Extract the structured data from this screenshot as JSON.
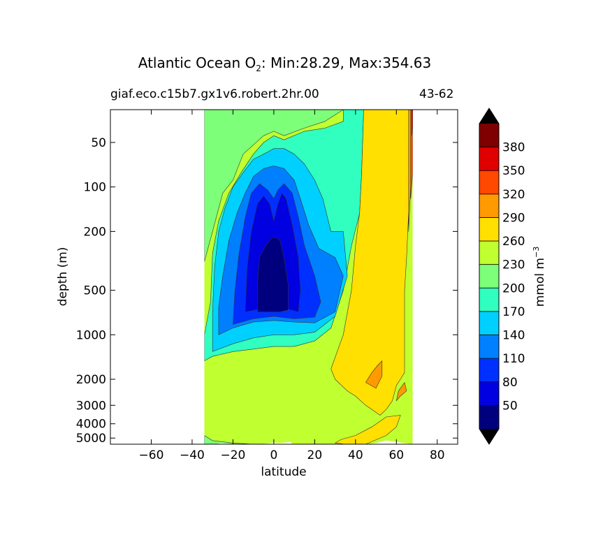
{
  "chart_data": {
    "type": "contourf",
    "title_prefix": "Atlantic Ocean O",
    "title_subscript": "2",
    "title_suffix": ": Min:28.29, Max:354.63",
    "subtitle_left": "giaf.eco.c15b7.gx1v6.robert.2hr.00",
    "subtitle_right": "43-62",
    "xlabel": "latitude",
    "ylabel": "depth (m)",
    "xlim": [
      -80,
      90
    ],
    "x_ticks": [
      -60,
      -40,
      -20,
      0,
      20,
      40,
      60,
      80
    ],
    "x_tick_labels": [
      "−60",
      "−40",
      "−20",
      "0",
      "20",
      "40",
      "60",
      "80"
    ],
    "y_scale": "log (inverted)",
    "ylim": [
      5500,
      30
    ],
    "y_ticks": [
      50,
      100,
      200,
      500,
      1000,
      2000,
      3000,
      4000,
      5000
    ],
    "y_tick_labels": [
      "50",
      "100",
      "200",
      "500",
      "1000",
      "2000",
      "3000",
      "4000",
      "5000"
    ],
    "data_lat_range": [
      -34,
      68
    ],
    "colorbar": {
      "label": "mmol m",
      "label_superscript": "−3",
      "levels": [
        20,
        50,
        80,
        110,
        140,
        170,
        200,
        230,
        260,
        290,
        320,
        350,
        380,
        410
      ],
      "tick_values": [
        50,
        80,
        110,
        140,
        170,
        200,
        230,
        260,
        290,
        320,
        350,
        380
      ],
      "tick_labels": [
        "50",
        "80",
        "110",
        "140",
        "170",
        "200",
        "230",
        "260",
        "290",
        "320",
        "350",
        "380"
      ],
      "colors": [
        "#00007f",
        "#0000e0",
        "#0030ff",
        "#0080ff",
        "#00d0ff",
        "#30ffc0",
        "#7dff7a",
        "#c0ff30",
        "#ffe000",
        "#ff9a00",
        "#ff4800",
        "#e00000",
        "#7f0000"
      ],
      "extend": "both",
      "under_color": "#000000",
      "over_color": "#000000"
    },
    "contours": [
      {
        "level": 230,
        "color": "#7dff7a",
        "points": [
          [
            -34,
            30
          ],
          [
            -34,
            320
          ],
          [
            -30,
            200
          ],
          [
            -25,
            110
          ],
          [
            -20,
            90
          ],
          [
            -15,
            60
          ],
          [
            -5,
            45
          ],
          [
            0,
            42
          ],
          [
            5,
            45
          ],
          [
            15,
            40
          ],
          [
            25,
            36
          ],
          [
            34,
            30
          ],
          [
            34,
            30
          ]
        ]
      },
      {
        "level": 200,
        "color": "#30ffc0",
        "points": [
          [
            -34,
            1500
          ],
          [
            -30,
            1400
          ],
          [
            -20,
            1300
          ],
          [
            -10,
            1250
          ],
          [
            0,
            1200
          ],
          [
            10,
            1200
          ],
          [
            20,
            1100
          ],
          [
            28,
            900
          ],
          [
            34,
            500
          ],
          [
            38,
            250
          ],
          [
            42,
            150
          ],
          [
            43,
            80
          ],
          [
            44,
            30
          ],
          [
            34,
            30
          ],
          [
            34,
            36
          ],
          [
            25,
            40
          ],
          [
            15,
            42
          ],
          [
            5,
            48
          ],
          [
            0,
            45
          ],
          [
            -5,
            50
          ],
          [
            -10,
            60
          ],
          [
            -16,
            80
          ],
          [
            -22,
            110
          ],
          [
            -27,
            170
          ],
          [
            -30,
            280
          ],
          [
            -31,
            600
          ],
          [
            -34,
            1000
          ]
        ]
      },
      {
        "level": 170,
        "color": "#00d0ff",
        "points": [
          [
            -30,
            1300
          ],
          [
            -20,
            1150
          ],
          [
            -10,
            1050
          ],
          [
            0,
            1000
          ],
          [
            10,
            1000
          ],
          [
            20,
            960
          ],
          [
            30,
            750
          ],
          [
            36,
            400
          ],
          [
            34,
            200
          ],
          [
            28,
            200
          ],
          [
            24,
            120
          ],
          [
            20,
            90
          ],
          [
            15,
            70
          ],
          [
            10,
            60
          ],
          [
            5,
            55
          ],
          [
            0,
            55
          ],
          [
            -5,
            60
          ],
          [
            -10,
            65
          ],
          [
            -15,
            80
          ],
          [
            -20,
            100
          ],
          [
            -24,
            140
          ],
          [
            -27,
            200
          ],
          [
            -29,
            350
          ],
          [
            -30,
            700
          ]
        ]
      },
      {
        "level": 140,
        "color": "#0080ff",
        "points": [
          [
            -27,
            1000
          ],
          [
            -20,
            900
          ],
          [
            -10,
            820
          ],
          [
            0,
            800
          ],
          [
            10,
            820
          ],
          [
            20,
            830
          ],
          [
            30,
            700
          ],
          [
            34,
            400
          ],
          [
            30,
            300
          ],
          [
            22,
            260
          ],
          [
            17,
            180
          ],
          [
            13,
            120
          ],
          [
            10,
            90
          ],
          [
            5,
            75
          ],
          [
            0,
            72
          ],
          [
            -5,
            75
          ],
          [
            -10,
            85
          ],
          [
            -14,
            110
          ],
          [
            -18,
            150
          ],
          [
            -22,
            230
          ],
          [
            -25,
            400
          ],
          [
            -27,
            650
          ]
        ]
      },
      {
        "level": 110,
        "color": "#0030ff",
        "points": [
          [
            -20,
            850
          ],
          [
            -10,
            780
          ],
          [
            0,
            750
          ],
          [
            10,
            780
          ],
          [
            20,
            760
          ],
          [
            23,
            600
          ],
          [
            20,
            400
          ],
          [
            15,
            250
          ],
          [
            12,
            160
          ],
          [
            9,
            110
          ],
          [
            5,
            95
          ],
          [
            2,
            105
          ],
          [
            0,
            120
          ],
          [
            -3,
            105
          ],
          [
            -7,
            95
          ],
          [
            -11,
            110
          ],
          [
            -14,
            160
          ],
          [
            -17,
            280
          ],
          [
            -19,
            500
          ]
        ]
      },
      {
        "level": 80,
        "color": "#0000e0",
        "points": [
          [
            -14,
            700
          ],
          [
            -7,
            670
          ],
          [
            0,
            650
          ],
          [
            7,
            670
          ],
          [
            12,
            700
          ],
          [
            13,
            500
          ],
          [
            12,
            300
          ],
          [
            9,
            180
          ],
          [
            6,
            120
          ],
          [
            4,
            110
          ],
          [
            2,
            130
          ],
          [
            0,
            170
          ],
          [
            -2,
            130
          ],
          [
            -5,
            115
          ],
          [
            -8,
            130
          ],
          [
            -11,
            200
          ],
          [
            -13,
            350
          ]
        ]
      },
      {
        "level": 50,
        "color": "#00007f",
        "points": [
          [
            -8,
            700
          ],
          [
            -3,
            700
          ],
          [
            3,
            700
          ],
          [
            7,
            680
          ],
          [
            7,
            450
          ],
          [
            5,
            300
          ],
          [
            3,
            230
          ],
          [
            1,
            220
          ],
          [
            -1,
            220
          ],
          [
            -4,
            250
          ],
          [
            -7,
            300
          ],
          [
            -8,
            450
          ]
        ]
      },
      {
        "level": 260,
        "color": "#ffe000",
        "points": [
          [
            36,
            2400
          ],
          [
            40,
            2600
          ],
          [
            45,
            3000
          ],
          [
            48,
            3200
          ],
          [
            52,
            3500
          ],
          [
            55,
            3200
          ],
          [
            58,
            2800
          ],
          [
            60,
            2200
          ],
          [
            62,
            2000
          ],
          [
            64,
            1800
          ],
          [
            64,
            500
          ],
          [
            65,
            300
          ],
          [
            66,
            150
          ],
          [
            66,
            30
          ],
          [
            44,
            30
          ],
          [
            43,
            80
          ],
          [
            42,
            150
          ],
          [
            40,
            250
          ],
          [
            38,
            500
          ],
          [
            34,
            1000
          ],
          [
            28,
            1700
          ],
          [
            30,
            2000
          ]
        ]
      },
      {
        "level": 290,
        "color": "#ff9a00",
        "points": [
          [
            66,
            30
          ],
          [
            66,
            200
          ],
          [
            67,
            100
          ],
          [
            68,
            30
          ]
        ]
      },
      {
        "level": 290,
        "color": "#ff9a00",
        "points": [
          [
            45,
            2100
          ],
          [
            50,
            2300
          ],
          [
            53,
            1900
          ],
          [
            53,
            1500
          ],
          [
            51,
            1600
          ],
          [
            48,
            1800
          ]
        ]
      },
      {
        "level": 290,
        "color": "#ff9a00",
        "points": [
          [
            60,
            2800
          ],
          [
            62,
            2600
          ],
          [
            65,
            2400
          ],
          [
            64,
            2100
          ],
          [
            61,
            2400
          ]
        ]
      },
      {
        "level": 320,
        "color": "#ff4800",
        "points": [
          [
            67,
            30
          ],
          [
            67,
            120
          ],
          [
            68,
            80
          ],
          [
            68,
            30
          ]
        ]
      },
      {
        "level": 350,
        "color": "#e00000",
        "points": [
          [
            67.5,
            30
          ],
          [
            67.5,
            45
          ],
          [
            68,
            40
          ],
          [
            68,
            30
          ]
        ]
      }
    ],
    "bottom_strip": [
      {
        "level": 230,
        "color": "#7dff7a",
        "points": [
          [
            -34,
            4800
          ],
          [
            -30,
            5200
          ],
          [
            -20,
            5400
          ],
          [
            -10,
            5500
          ],
          [
            -34,
            5500
          ]
        ]
      },
      {
        "level": 260,
        "color": "#ffe000",
        "points": [
          [
            30,
            5400
          ],
          [
            35,
            5500
          ],
          [
            45,
            5500
          ],
          [
            55,
            4800
          ],
          [
            60,
            4200
          ],
          [
            62,
            3500
          ],
          [
            55,
            3600
          ],
          [
            48,
            4200
          ],
          [
            40,
            4800
          ],
          [
            33,
            5100
          ]
        ]
      }
    ],
    "fill_color_top": "#c0ff30",
    "bottom_land": [
      [
        -34,
        5500
      ],
      [
        -34,
        5600
      ],
      [
        -30,
        5600
      ],
      [
        -26,
        5400
      ],
      [
        -20,
        5500
      ],
      [
        -10,
        5600
      ],
      [
        0,
        5350
      ],
      [
        3,
        5400
      ],
      [
        8,
        5300
      ],
      [
        10,
        5600
      ],
      [
        42,
        5600
      ],
      [
        44,
        5450
      ],
      [
        50,
        5600
      ],
      [
        68,
        5600
      ],
      [
        68,
        5500
      ],
      [
        60,
        5300
      ],
      [
        55,
        5200
      ],
      [
        50,
        5400
      ],
      [
        42,
        5600
      ]
    ]
  }
}
